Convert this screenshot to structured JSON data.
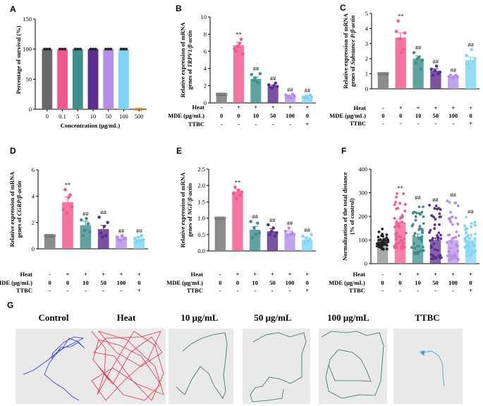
{
  "panel_labels": [
    "A",
    "B",
    "C",
    "D",
    "E",
    "F",
    "G"
  ],
  "colors": {
    "control": "#8c8c8c",
    "heat": "#f2578b",
    "mde10": "#3e8f8c",
    "mde50": "#5b2d8e",
    "mde100": "#b58de8",
    "ttbc": "#7fd3f5",
    "panelA": [
      "#696969",
      "#f2578b",
      "#3e8f8c",
      "#5b2d8e",
      "#b58de8",
      "#7fd3f5",
      "#e07b1f"
    ],
    "traj_control": "#2b3bd6",
    "traj_heat": "#e8304a",
    "traj_other": "#2e6e6e",
    "traj_ttbc": "#3aa6d8",
    "traj_bg": "#e9e9e9"
  },
  "row_labels": {
    "heat": "Heat",
    "mde": "MDE (μg/mL)",
    "ttbc": "TTBC"
  },
  "conditions": {
    "heat": [
      "-",
      "+",
      "+",
      "+",
      "+",
      "+"
    ],
    "mde": [
      "0",
      "0",
      "10",
      "50",
      "100",
      "0"
    ],
    "ttbc": [
      "-",
      "-",
      "-",
      "-",
      "-",
      "+"
    ]
  },
  "chart_data": [
    {
      "panel": "A",
      "type": "bar",
      "title": "",
      "ylabel": "Percentage of survival (%)",
      "xlabel": "Concentration (μg/mL)",
      "categories": [
        "0",
        "0.1",
        "5",
        "10",
        "50",
        "100",
        "500"
      ],
      "values": [
        100,
        100,
        100,
        100,
        100,
        100,
        0
      ],
      "ylim": [
        0,
        150
      ],
      "yticks": [
        0,
        50,
        100,
        150
      ]
    },
    {
      "panel": "B",
      "type": "bar",
      "ylabel_lines": [
        "Relative expression of mRNA",
        "genes of TRPV1/β-actin"
      ],
      "values": [
        1.0,
        6.7,
        2.8,
        1.95,
        0.8,
        0.7
      ],
      "points": [
        [
          1,
          1,
          1,
          1,
          1,
          1
        ],
        [
          6.3,
          6.0,
          6.6,
          6.9,
          7.4,
          5.7
        ],
        [
          3.3,
          2.6,
          2.9,
          2.5,
          2.3,
          3.4
        ],
        [
          2.1,
          1.8,
          1.7,
          2.0,
          2.3,
          1.9
        ],
        [
          0.9,
          0.7,
          0.8,
          0.6,
          1.0,
          0.8
        ],
        [
          0.7,
          0.6,
          0.8,
          0.5,
          0.9,
          0.7
        ]
      ],
      "errors": [
        0.05,
        0.35,
        0.2,
        0.12,
        0.08,
        0.07
      ],
      "annotations": [
        "",
        "**",
        "##",
        "##",
        "##",
        "##"
      ],
      "ylim": [
        0,
        10
      ],
      "yticks": [
        0,
        2,
        4,
        6,
        8,
        10
      ]
    },
    {
      "panel": "C",
      "type": "bar",
      "ylabel_lines": [
        "Relative expression of mRNA",
        "genes of Substance P/β-actin"
      ],
      "values": [
        1.0,
        3.4,
        2.0,
        1.2,
        0.8,
        1.9
      ],
      "points": [
        [
          1,
          1,
          1,
          1,
          1,
          1
        ],
        [
          3.8,
          4.5,
          3.3,
          2.4,
          2.6,
          3.7
        ],
        [
          2.4,
          1.7,
          2.0,
          2.1,
          1.3,
          1.9
        ],
        [
          1.3,
          0.9,
          1.2,
          1.5,
          1.0,
          1.1
        ],
        [
          0.8,
          0.9,
          0.7,
          0.8,
          0.9,
          0.8
        ],
        [
          2.2,
          1.6,
          1.4,
          2.6,
          1.8,
          2.0
        ]
      ],
      "errors": [
        0.02,
        0.3,
        0.18,
        0.12,
        0.05,
        0.2
      ],
      "annotations": [
        "",
        "**",
        "##",
        "##",
        "##",
        "##"
      ],
      "ylim": [
        0,
        5
      ],
      "yticks": [
        0,
        1,
        2,
        3,
        4,
        5
      ]
    },
    {
      "panel": "D",
      "type": "bar",
      "ylabel_lines": [
        "Relative expression of mRNA",
        "genes of CGRP/β-actin"
      ],
      "values": [
        1.0,
        3.55,
        1.8,
        1.5,
        0.8,
        0.75
      ],
      "points": [
        [
          1,
          1,
          1,
          1,
          1,
          1
        ],
        [
          3.0,
          4.5,
          2.7,
          3.9,
          4.1,
          3.2
        ],
        [
          2.2,
          1.0,
          1.4,
          2.3,
          1.9,
          1.3
        ],
        [
          2.4,
          1.2,
          0.9,
          1.7,
          1.0,
          2.0
        ],
        [
          0.9,
          0.7,
          0.6,
          1.0,
          0.8,
          0.8
        ],
        [
          0.8,
          0.5,
          0.9,
          0.6,
          1.0,
          0.7
        ]
      ],
      "errors": [
        0.02,
        0.4,
        0.3,
        0.28,
        0.12,
        0.1
      ],
      "annotations": [
        "",
        "**",
        "##",
        "##",
        "##",
        "##"
      ],
      "ylim": [
        0,
        6
      ],
      "yticks": [
        0,
        2,
        4,
        6
      ]
    },
    {
      "panel": "E",
      "type": "bar",
      "ylabel_lines": [
        "Relative expression of mRNA",
        "genes of NGF/β-actin"
      ],
      "values": [
        1.0,
        1.82,
        0.65,
        0.6,
        0.55,
        0.35
      ],
      "points": [
        [
          1,
          1,
          1,
          1,
          1,
          1
        ],
        [
          1.75,
          1.95,
          1.6,
          1.85,
          1.7,
          1.8
        ],
        [
          0.9,
          0.4,
          0.7,
          0.5,
          0.85,
          0.55
        ],
        [
          0.8,
          0.5,
          0.6,
          0.7,
          0.45,
          0.55
        ],
        [
          0.6,
          0.45,
          0.7,
          0.5,
          0.55,
          0.5
        ],
        [
          0.45,
          0.25,
          0.4,
          0.3,
          0.35,
          0.5
        ]
      ],
      "errors": [
        0.01,
        0.07,
        0.1,
        0.08,
        0.06,
        0.06
      ],
      "annotations": [
        "",
        "**",
        "##",
        "##",
        "##",
        "##"
      ],
      "ylim": [
        0,
        2.5
      ],
      "yticks": [
        0.0,
        0.5,
        1.0,
        1.5,
        2.0,
        2.5
      ]
    },
    {
      "panel": "F",
      "type": "bar",
      "ylabel_lines": [
        "Normalization of the total distance",
        "(% of control)"
      ],
      "values": [
        100,
        175,
        115,
        100,
        100,
        100
      ],
      "errors": [
        5,
        15,
        10,
        8,
        8,
        8
      ],
      "n_points": 45,
      "spread": [
        [
          60,
          150
        ],
        [
          60,
          300
        ],
        [
          40,
          260
        ],
        [
          20,
          250
        ],
        [
          15,
          270
        ],
        [
          30,
          200
        ]
      ],
      "annotations": [
        "",
        "**",
        "##",
        "##",
        "##",
        "##"
      ],
      "ylim": [
        0,
        400
      ],
      "yticks": [
        0,
        100,
        200,
        300,
        400
      ]
    }
  ],
  "trajectories": {
    "titles": [
      "Control",
      "Heat",
      "10 μg/mL",
      "50 μg/mL",
      "100 μg/mL",
      "TTBC"
    ]
  }
}
